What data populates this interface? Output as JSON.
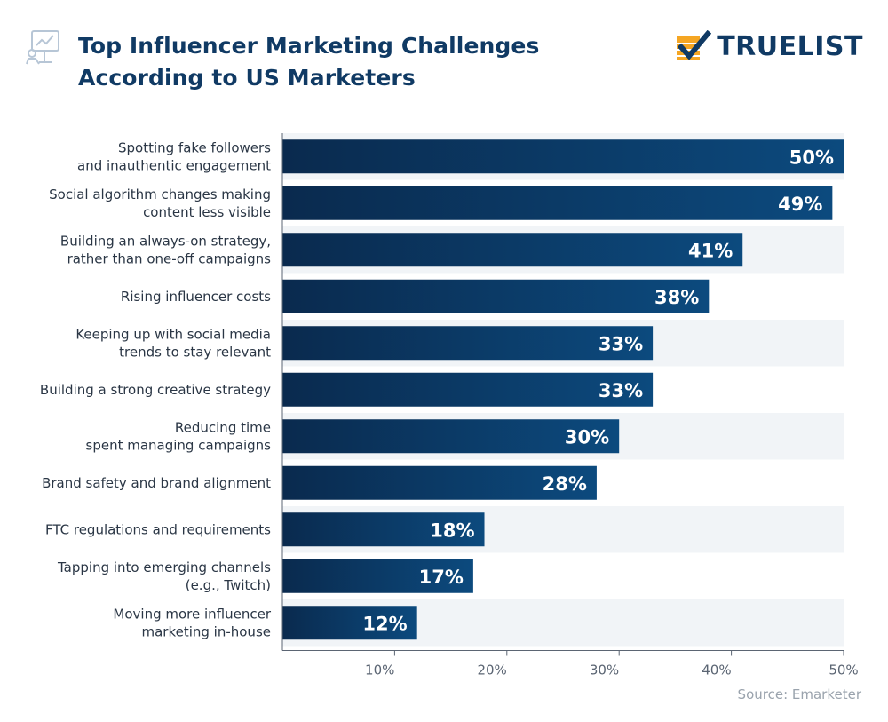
{
  "header": {
    "title_line1": "Top Influencer Marketing Challenges",
    "title_line2": "According to US Marketers",
    "brand": "TRUELIST",
    "icon": "presentation-chart-icon",
    "logo_icon": "checkmark-logo-icon"
  },
  "source": "Source: Emarketer",
  "colors": {
    "bar_start": "#0a2a4e",
    "bar_end": "#0c4a7e",
    "stripe": "#f1f4f7",
    "title": "#103a64",
    "accent": "#f5a623"
  },
  "chart_data": {
    "type": "bar",
    "orientation": "horizontal",
    "title": "Top Influencer Marketing Challenges According to US Marketers",
    "xlabel": "",
    "ylabel": "",
    "xlim": [
      0,
      50
    ],
    "grid": false,
    "legend": "none",
    "ticks": [
      "10%",
      "20%",
      "30%",
      "40%",
      "50%"
    ],
    "tick_values": [
      10,
      20,
      30,
      40,
      50
    ],
    "categories": [
      [
        "Spotting fake followers",
        "and inauthentic engagement"
      ],
      [
        "Social algorithm changes making",
        "content less visible"
      ],
      [
        "Building an always-on strategy,",
        "rather than one-off campaigns"
      ],
      [
        "Rising influencer costs"
      ],
      [
        "Keeping up with social media",
        "trends to stay relevant"
      ],
      [
        "Building a strong creative strategy"
      ],
      [
        "Reducing time",
        "spent managing campaigns"
      ],
      [
        "Brand safety and brand alignment"
      ],
      [
        "FTC regulations and requirements"
      ],
      [
        "Tapping into emerging channels",
        "(e.g., Twitch)"
      ],
      [
        "Moving more influencer",
        "marketing in-house"
      ]
    ],
    "values": [
      50,
      49,
      41,
      38,
      33,
      33,
      30,
      28,
      18,
      17,
      12
    ],
    "value_labels": [
      "50%",
      "49%",
      "41%",
      "38%",
      "33%",
      "33%",
      "30%",
      "28%",
      "18%",
      "17%",
      "12%"
    ]
  }
}
